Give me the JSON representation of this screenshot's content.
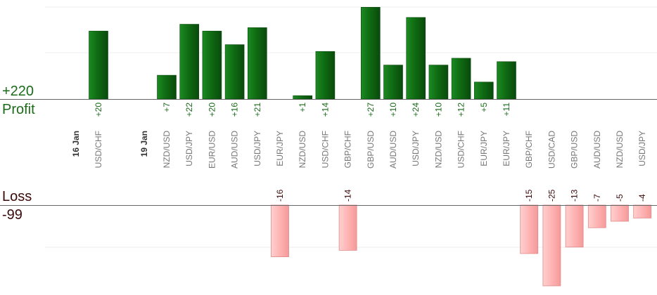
{
  "summary": {
    "profit_total": "+220",
    "profit_label": "Profit",
    "loss_label": "Loss",
    "loss_total": "-99"
  },
  "colors": {
    "profit_bar": "#0f6b12",
    "loss_bar": "#ffb3b3",
    "profit_text": "#1a6b1a",
    "loss_text": "#3a0a0a",
    "grid": "#eeeeee",
    "baseline": "#666666",
    "axis_text": "#777777"
  },
  "chart_data": {
    "type": "bar",
    "grid": true,
    "categories": [
      "USD/CHF",
      "NZD/USD",
      "USD/JPY",
      "EUR/USD",
      "AUD/USD",
      "USD/JPY",
      "EUR/JPY",
      "NZD/USD",
      "USD/CHF",
      "GBP/CHF",
      "GBP/USD",
      "AUD/USD",
      "USD/JPY",
      "NZD/USD",
      "USD/CHF",
      "EUR/JPY",
      "EUR/JPY",
      "GBP/CHF",
      "USD/CAD",
      "GBP/USD",
      "AUD/USD",
      "NZD/USD",
      "USD/JPY"
    ],
    "date_groups": [
      {
        "label": "16 Jan",
        "start_index": 0
      },
      {
        "label": "19 Jan",
        "start_index": 1
      }
    ],
    "profit": {
      "values": [
        20,
        7,
        22,
        20,
        16,
        21,
        null,
        1,
        14,
        null,
        27,
        10,
        24,
        10,
        12,
        5,
        11,
        null,
        null,
        null,
        null,
        null,
        null
      ],
      "labels": [
        "+20",
        "+7",
        "+22",
        "+20",
        "+16",
        "+21",
        "",
        "+1",
        "+14",
        "",
        "+27",
        "+10",
        "+24",
        "+10",
        "+12",
        "+5",
        "+11",
        "",
        "",
        "",
        "",
        "",
        ""
      ]
    },
    "loss": {
      "values": [
        null,
        null,
        null,
        null,
        null,
        null,
        -16,
        null,
        null,
        -14,
        null,
        null,
        null,
        null,
        null,
        null,
        null,
        -15,
        -25,
        -13,
        -7,
        -5,
        -4
      ],
      "labels": [
        "",
        "",
        "",
        "",
        "",
        "",
        "-16",
        "",
        "",
        "-14",
        "",
        "",
        "",
        "",
        "",
        "",
        "",
        "-15",
        "-25",
        "-13",
        "-7",
        "-5",
        "-4"
      ]
    }
  }
}
